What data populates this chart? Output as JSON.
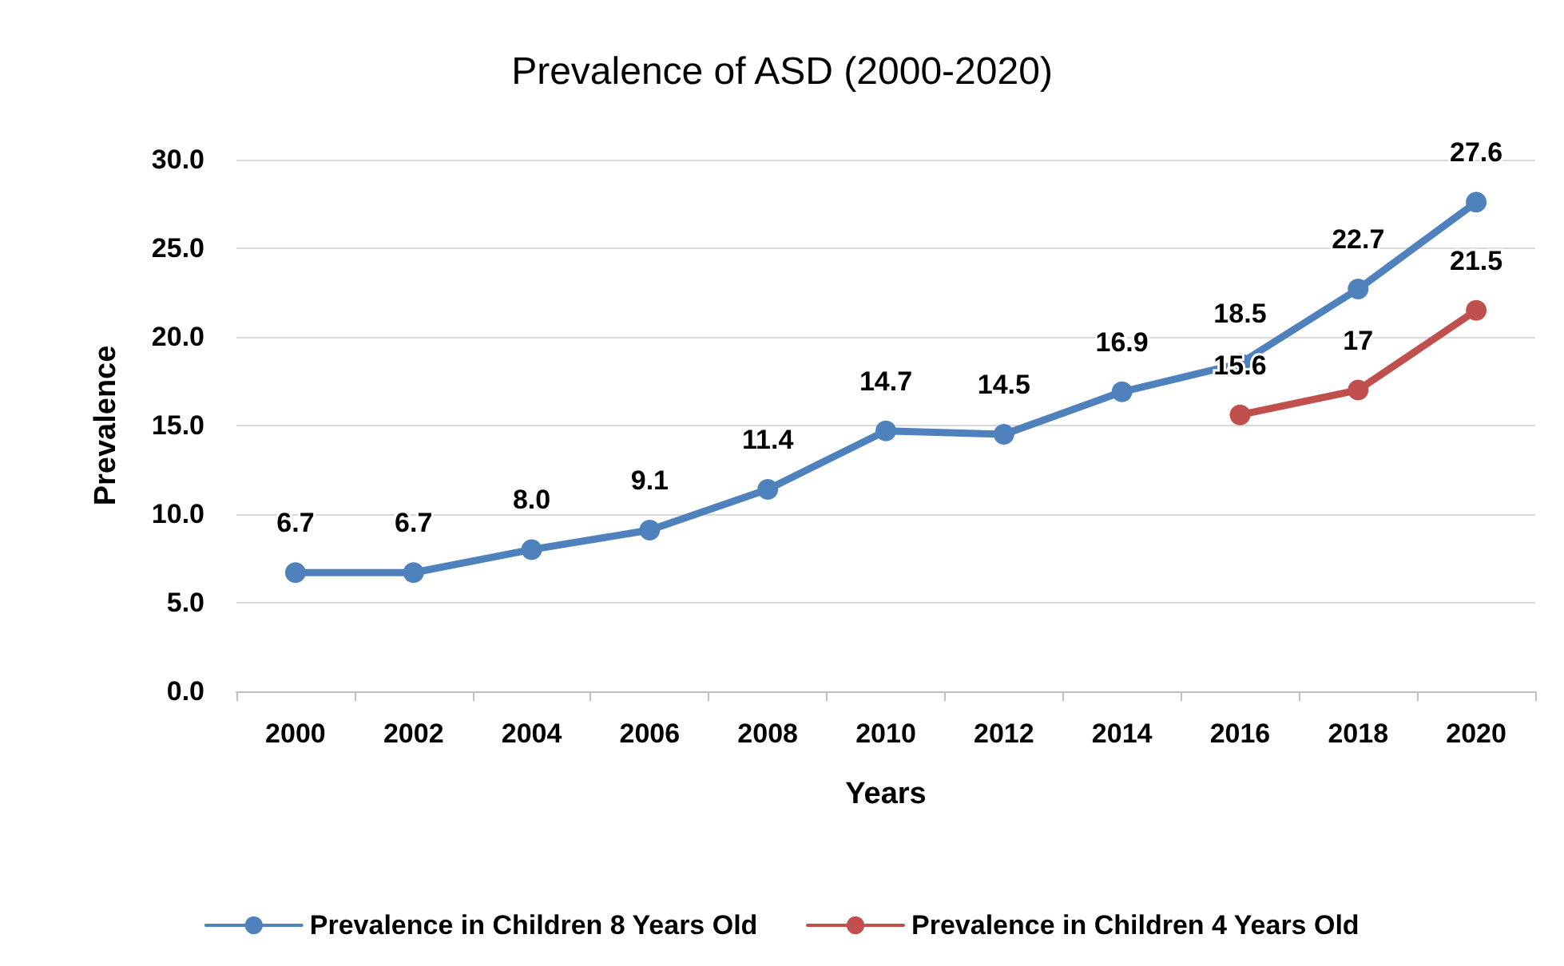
{
  "chart_data": {
    "type": "line",
    "title": "Prevalence of ASD (2000-2020)",
    "xlabel": "Years",
    "ylabel": "Prevalence",
    "categories": [
      "2000",
      "2002",
      "2004",
      "2006",
      "2008",
      "2010",
      "2012",
      "2014",
      "2016",
      "2018",
      "2020"
    ],
    "series": [
      {
        "name": "Prevalence in Children 8 Years Old",
        "color": "#4f81bd",
        "values": [
          6.7,
          6.7,
          8.0,
          9.1,
          11.4,
          14.7,
          14.5,
          16.9,
          18.5,
          22.7,
          27.6
        ],
        "value_labels": [
          "6.7",
          "6.7",
          "8.0",
          "9.1",
          "11.4",
          "14.7",
          "14.5",
          "16.9",
          "18.5",
          "22.7",
          "27.6"
        ]
      },
      {
        "name": "Prevalence in Children 4 Years Old",
        "color": "#c0504d",
        "values": [
          null,
          null,
          null,
          null,
          null,
          null,
          null,
          null,
          15.6,
          17,
          21.5
        ],
        "value_labels": [
          null,
          null,
          null,
          null,
          null,
          null,
          null,
          null,
          "15.6",
          "17",
          "21.5"
        ]
      }
    ],
    "ylim": [
      0,
      30
    ],
    "yticks": [
      {
        "value": 0,
        "label": "0.0"
      },
      {
        "value": 5,
        "label": "5.0"
      },
      {
        "value": 10,
        "label": "10.0"
      },
      {
        "value": 15,
        "label": "15.0"
      },
      {
        "value": 20,
        "label": "20.0"
      },
      {
        "value": 25,
        "label": "25.0"
      },
      {
        "value": 30,
        "label": "30.0"
      }
    ],
    "grid": "y",
    "legend": "bottom",
    "marker": "circle",
    "line_style": "solid"
  }
}
